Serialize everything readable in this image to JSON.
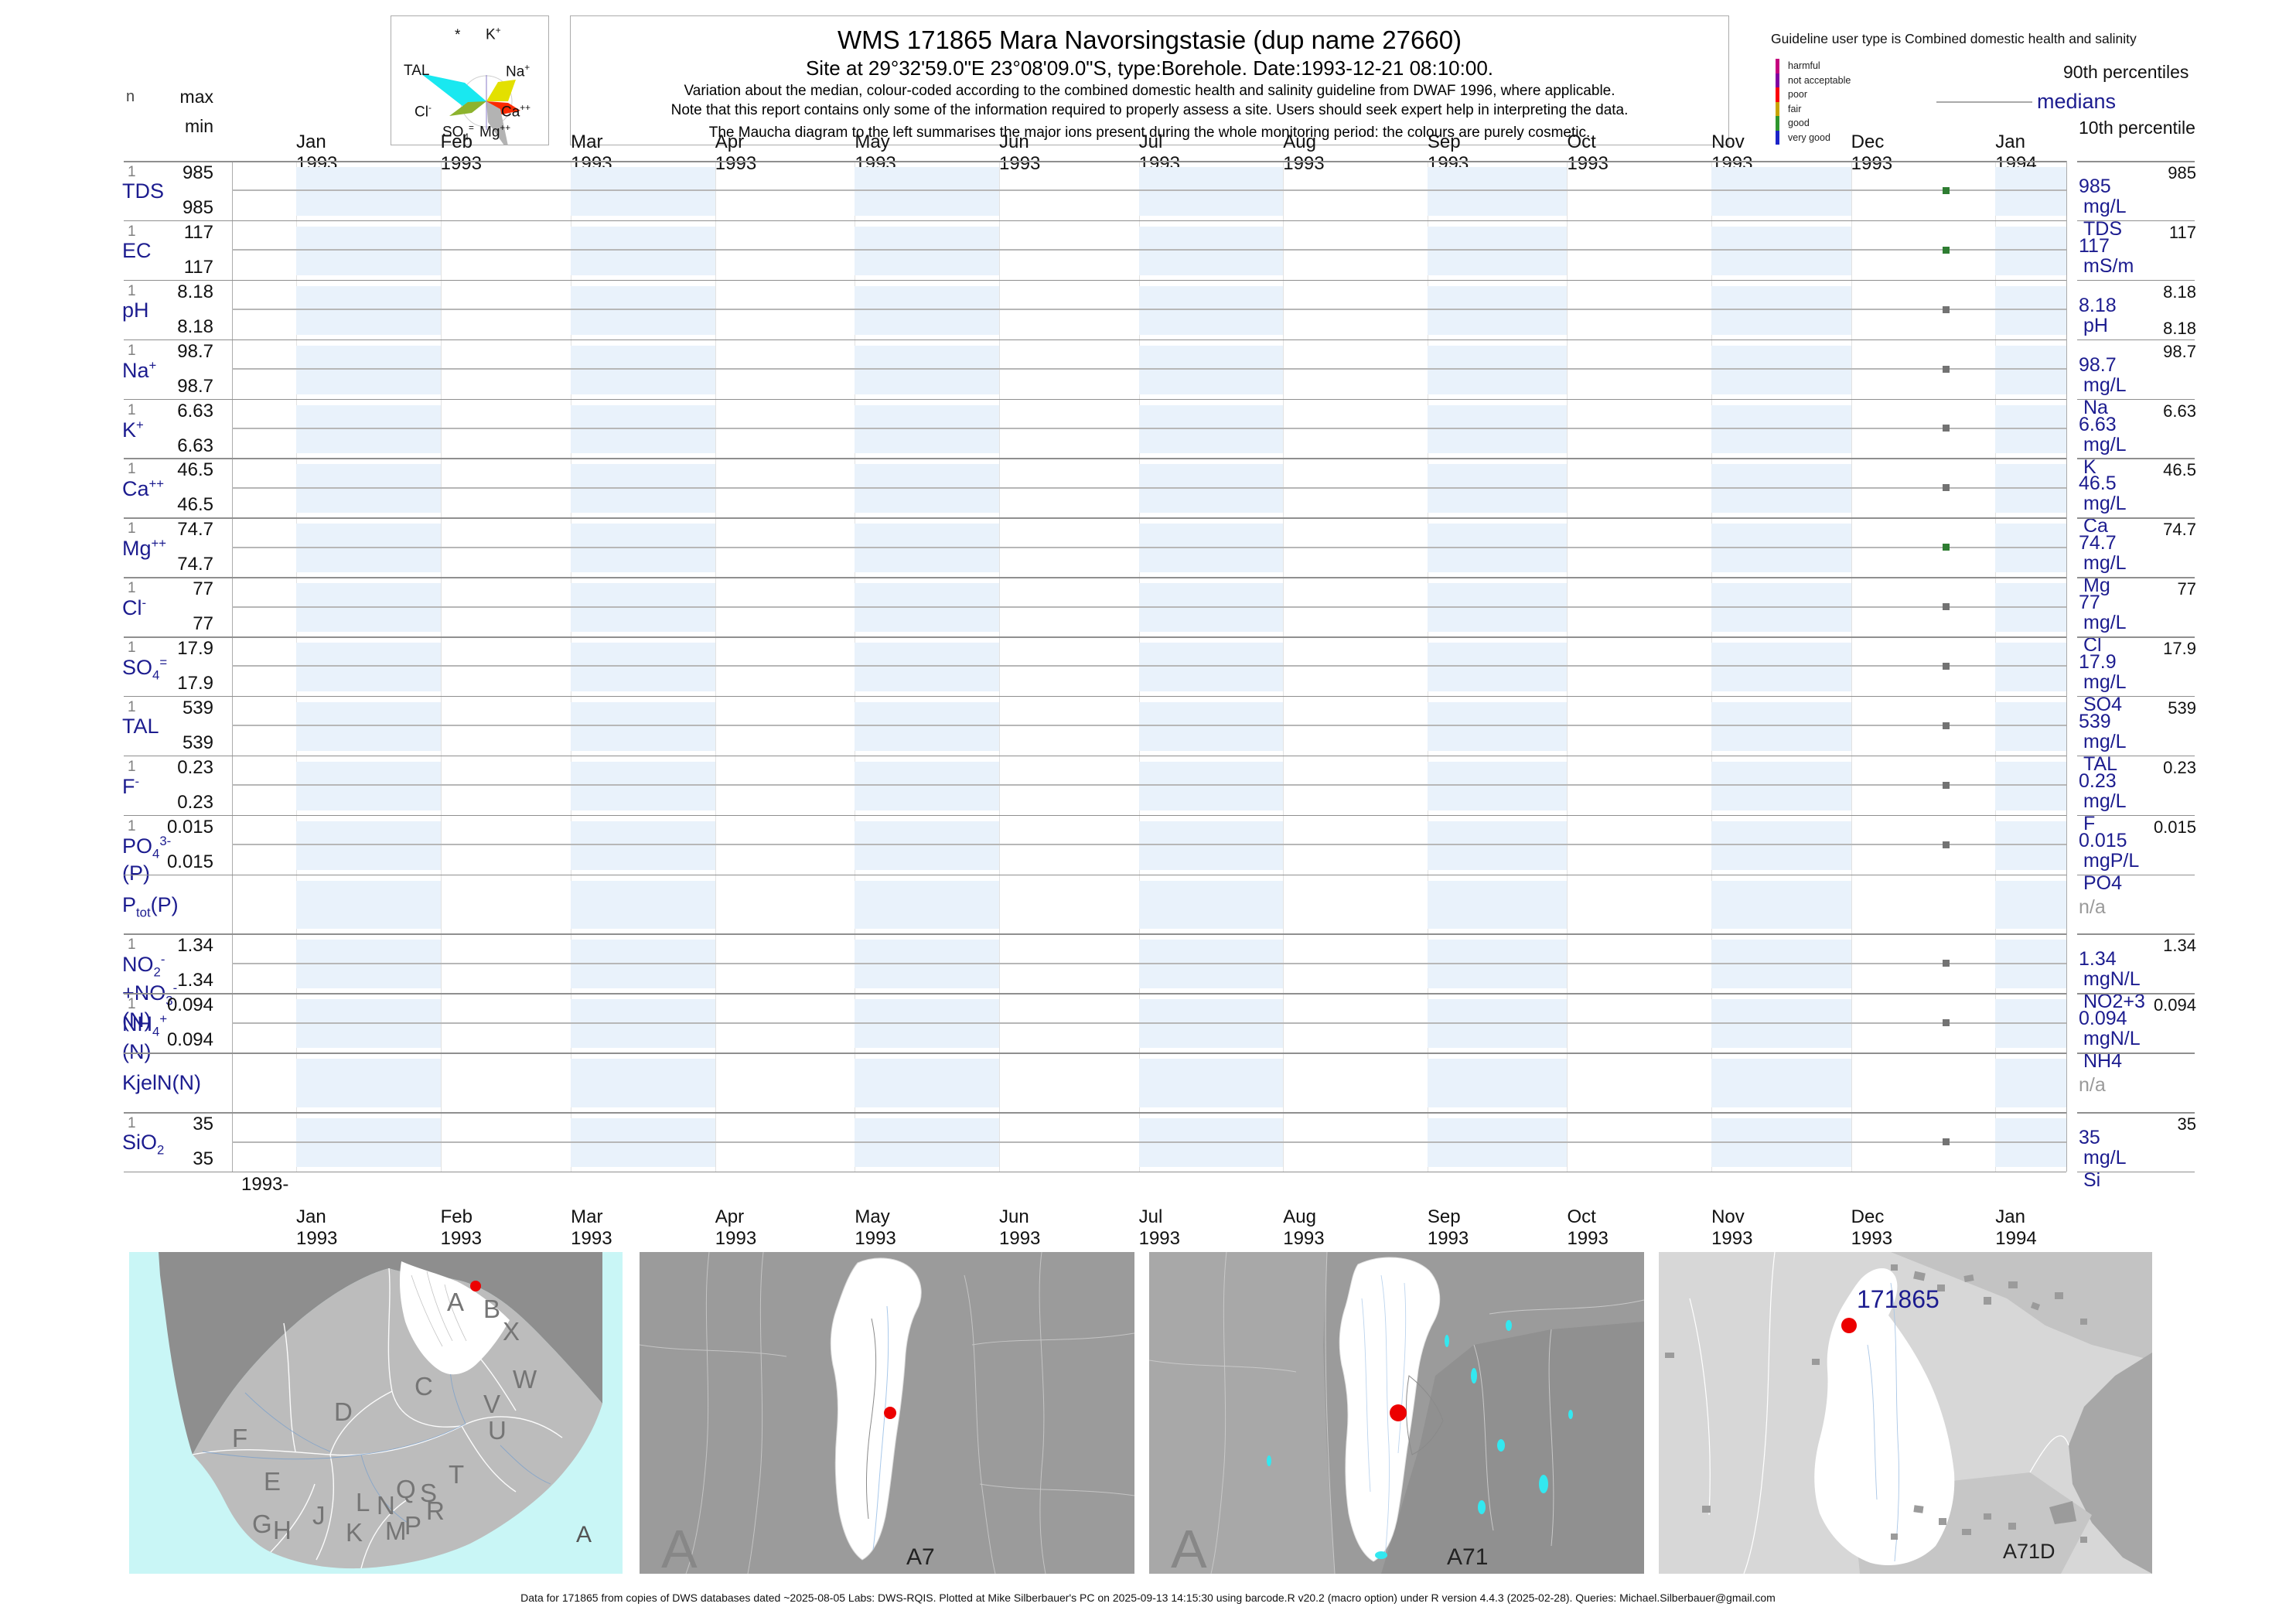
{
  "header": {
    "title": "WMS 171865  Mara Navorsingstasie (dup name 27660)",
    "subtitle": "Site at 29°32'59.0\"E 23°08'09.0\"S, type:Borehole. Date:1993-12-21 08:10:00.",
    "note1": "Variation about the median,  colour-coded according to the combined domestic health and salinity guideline from DWAF 1996, where applicable.",
    "note2": "Note that this report contains only some of the information required to properly assess a site. Users should seek expert help in interpreting the data.",
    "note3": "The Maucha diagram to the left summarises the major ions present during the whole monitoring period: the colours are purely cosmetic."
  },
  "maucha": {
    "ion_labels": [
      [
        [
          "t",
          "*"
        ]
      ],
      [
        [
          "t",
          "K"
        ],
        [
          "sup",
          "+"
        ]
      ],
      [
        [
          "t",
          "Na"
        ],
        [
          "sup",
          "+"
        ]
      ],
      [
        [
          "t",
          "TAL"
        ]
      ],
      [
        [
          "t",
          "Cl"
        ],
        [
          "sup",
          "-"
        ]
      ],
      [
        [
          "t",
          "Ca"
        ],
        [
          "sup",
          "++"
        ]
      ],
      [
        [
          "t",
          "SO"
        ],
        [
          "sub",
          "4"
        ],
        [
          "sup",
          "="
        ]
      ],
      [
        [
          "t",
          "Mg"
        ],
        [
          "sup",
          "++"
        ]
      ]
    ]
  },
  "legend": {
    "guideline_title": "Guideline user type is Combined domestic health and salinity",
    "classes": [
      {
        "label": "harmful",
        "color": "#c4007e"
      },
      {
        "label": "not acceptable",
        "color": "#8000a0"
      },
      {
        "label": "poor",
        "color": "#fb0007"
      },
      {
        "label": "fair",
        "color": "#c8a400"
      },
      {
        "label": "good",
        "color": "#2e962e"
      },
      {
        "label": "very good",
        "color": "#1c24c8"
      }
    ],
    "p90_label": "90th percentiles",
    "median_label": "medians",
    "p10_label": "10th percentile"
  },
  "stats_header": {
    "n": "n",
    "max": "max",
    "min": "min"
  },
  "axis": {
    "months": [
      "Jan 1993",
      "Feb 1993",
      "Mar 1993",
      "Apr 1993",
      "May 1993",
      "Jun 1993",
      "Jul 1993",
      "Aug 1993",
      "Sep 1993",
      "Oct 1993",
      "Nov 1993",
      "Dec 1993",
      "Jan 1994"
    ],
    "partial_year_tick": "1993-"
  },
  "chart_data": {
    "type": "scatter",
    "title": "WMS 171865  Mara Navorsingstasie (dup name 27660)",
    "site": "Mara Navorsingstasie, Borehole",
    "sample_date": "1993-12-21",
    "x_axis_months": [
      "Jan 1993",
      "Feb 1993",
      "Mar 1993",
      "Apr 1993",
      "May 1993",
      "Jun 1993",
      "Jul 1993",
      "Aug 1993",
      "Sep 1993",
      "Oct 1993",
      "Nov 1993",
      "Dec 1993",
      "Jan 1994"
    ],
    "legend_position": "top-right",
    "parameters": [
      {
        "id": "TDS",
        "name_parts": [
          [
            "t",
            "TDS"
          ]
        ],
        "n": "1",
        "max": "985",
        "min": "985",
        "p90": "985",
        "median": "985",
        "p10": null,
        "unit": "mg/L TDS",
        "value": 985,
        "dot_color": "#2e7d32"
      },
      {
        "id": "EC",
        "name_parts": [
          [
            "t",
            "EC"
          ]
        ],
        "n": "1",
        "max": "117",
        "min": "117",
        "p90": "117",
        "median": "117",
        "p10": null,
        "unit": "mS/m",
        "value": 117,
        "dot_color": "#2e7d32"
      },
      {
        "id": "pH",
        "name_parts": [
          [
            "t",
            "pH"
          ]
        ],
        "n": "1",
        "max": "8.18",
        "min": "8.18",
        "p90": "8.18",
        "median": "8.18",
        "p10": "8.18",
        "unit": "pH",
        "value": 8.18,
        "dot_color": "#737373"
      },
      {
        "id": "Na",
        "name_parts": [
          [
            "t",
            "Na"
          ],
          [
            "sup",
            "+"
          ]
        ],
        "n": "1",
        "max": "98.7",
        "min": "98.7",
        "p90": "98.7",
        "median": "98.7",
        "p10": null,
        "unit": "mg/L Na",
        "value": 98.7,
        "dot_color": "#737373"
      },
      {
        "id": "K",
        "name_parts": [
          [
            "t",
            "K"
          ],
          [
            "sup",
            "+"
          ]
        ],
        "n": "1",
        "max": "6.63",
        "min": "6.63",
        "p90": "6.63",
        "median": "6.63",
        "p10": null,
        "unit": "mg/L K",
        "value": 6.63,
        "dot_color": "#737373"
      },
      {
        "id": "Ca",
        "name_parts": [
          [
            "t",
            "Ca"
          ],
          [
            "sup",
            "++"
          ]
        ],
        "n": "1",
        "max": "46.5",
        "min": "46.5",
        "p90": "46.5",
        "median": "46.5",
        "p10": null,
        "unit": "mg/L Ca",
        "value": 46.5,
        "dot_color": "#737373"
      },
      {
        "id": "Mg",
        "name_parts": [
          [
            "t",
            "Mg"
          ],
          [
            "sup",
            "++"
          ]
        ],
        "n": "1",
        "max": "74.7",
        "min": "74.7",
        "p90": "74.7",
        "median": "74.7",
        "p10": null,
        "unit": "mg/L Mg",
        "value": 74.7,
        "dot_color": "#2e7d32"
      },
      {
        "id": "Cl",
        "name_parts": [
          [
            "t",
            "Cl"
          ],
          [
            "sup",
            "-"
          ]
        ],
        "n": "1",
        "max": "77",
        "min": "77",
        "p90": "77",
        "median": "77",
        "p10": null,
        "unit": "mg/L Cl",
        "value": 77,
        "dot_color": "#737373"
      },
      {
        "id": "SO4",
        "name_parts": [
          [
            "t",
            "SO"
          ],
          [
            "sub",
            "4"
          ],
          [
            "sup",
            "="
          ]
        ],
        "n": "1",
        "max": "17.9",
        "min": "17.9",
        "p90": "17.9",
        "median": "17.9",
        "p10": null,
        "unit": "mg/L SO4",
        "value": 17.9,
        "dot_color": "#737373"
      },
      {
        "id": "TAL",
        "name_parts": [
          [
            "t",
            "TAL"
          ]
        ],
        "n": "1",
        "max": "539",
        "min": "539",
        "p90": "539",
        "median": "539",
        "p10": null,
        "unit": "mg/L TAL",
        "value": 539,
        "dot_color": "#737373"
      },
      {
        "id": "F",
        "name_parts": [
          [
            "t",
            "F"
          ],
          [
            "sup",
            "-"
          ]
        ],
        "n": "1",
        "max": "0.23",
        "min": "0.23",
        "p90": "0.23",
        "median": "0.23",
        "p10": null,
        "unit": "mg/L F",
        "value": 0.23,
        "dot_color": "#737373"
      },
      {
        "id": "PO4",
        "name_parts": [
          [
            "t",
            "PO"
          ],
          [
            "sub",
            "4"
          ],
          [
            "sup",
            "3-"
          ],
          [
            "t",
            "(P)"
          ]
        ],
        "n": "1",
        "max": "0.015",
        "min": "0.015",
        "p90": "0.015",
        "median": "0.015",
        "p10": null,
        "unit": "mgP/L PO4",
        "value": 0.015,
        "dot_color": "#737373"
      },
      {
        "id": "Ptot",
        "name_parts": [
          [
            "t",
            "P"
          ],
          [
            "sub",
            "tot"
          ],
          [
            "t",
            "(P)"
          ]
        ],
        "n": null,
        "max": null,
        "min": null,
        "p90": null,
        "median": null,
        "p10": null,
        "unit": null,
        "na_label": "n/a",
        "value": null,
        "dot_color": null
      },
      {
        "id": "NO2+NO3",
        "name_parts": [
          [
            "t",
            "NO"
          ],
          [
            "sub",
            "2"
          ],
          [
            "sup",
            "-"
          ],
          [
            "t",
            "+NO"
          ],
          [
            "sub",
            "3"
          ],
          [
            "sup",
            "-"
          ],
          [
            "t",
            "(N)"
          ]
        ],
        "n": "1",
        "max": "1.34",
        "min": "1.34",
        "p90": "1.34",
        "median": "1.34",
        "p10": null,
        "unit": "mgN/L NO2+3",
        "value": 1.34,
        "dot_color": "#737373"
      },
      {
        "id": "NH4",
        "name_parts": [
          [
            "t",
            "NH"
          ],
          [
            "sub",
            "4"
          ],
          [
            "sup",
            "+"
          ],
          [
            "t",
            "(N)"
          ]
        ],
        "n": "1",
        "max": "0.094",
        "min": "0.094",
        "p90": "0.094",
        "median": "0.094",
        "p10": null,
        "unit": "mgN/L NH4",
        "value": 0.094,
        "dot_color": "#737373"
      },
      {
        "id": "KjelN",
        "name_parts": [
          [
            "t",
            "KjelN(N)"
          ]
        ],
        "n": null,
        "max": null,
        "min": null,
        "p90": null,
        "median": null,
        "p10": null,
        "unit": null,
        "na_label": "n/a",
        "value": null,
        "dot_color": null
      },
      {
        "id": "SiO2",
        "name_parts": [
          [
            "t",
            "SiO"
          ],
          [
            "sub",
            "2"
          ]
        ],
        "n": "1",
        "max": "35",
        "min": "35",
        "p90": "35",
        "median": "35",
        "p10": null,
        "unit": "mg/L Si",
        "value": 35,
        "dot_color": "#737373"
      }
    ]
  },
  "maps": {
    "panel1": {
      "corner_label": "A",
      "region_letters": [
        "A",
        "B",
        "X",
        "C",
        "W",
        "V",
        "U",
        "D",
        "F",
        "E",
        "T",
        "S",
        "Q",
        "R",
        "N",
        "L",
        "P",
        "M",
        "J",
        "K",
        "G",
        "H"
      ]
    },
    "panel2": {
      "watermark": "A",
      "label": "A7"
    },
    "panel3": {
      "watermark": "A",
      "label": "A71"
    },
    "panel4": {
      "station_label": "171865",
      "label": "A71D"
    }
  },
  "footer": {
    "text": "Data for 171865 from copies of DWS databases dated ~2025-08-05 Labs: DWS-RQIS. Plotted at Mike Silberbauer's PC on 2025-09-13 14:15:30 using barcode.R v20.2 (macro option) under R version 4.4.3 (2025-02-28). Queries: Michael.Silberbauer@gmail.com"
  }
}
